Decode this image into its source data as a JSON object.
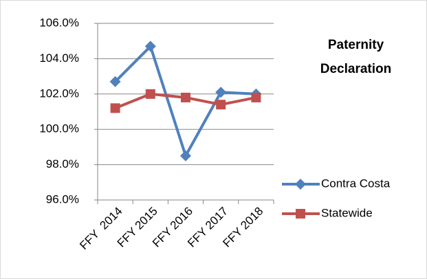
{
  "chart_data": {
    "type": "line",
    "title": "Paternity Declaration",
    "categories": [
      "FFY  2014",
      "FFY 2015",
      "FFY 2016",
      "FFY 2017",
      "FFY 2018"
    ],
    "series": [
      {
        "name": "Contra Costa",
        "color": "#4f81bd",
        "marker": "diamond",
        "values": [
          102.7,
          104.7,
          98.5,
          102.1,
          102.0
        ]
      },
      {
        "name": "Statewide",
        "color": "#c0504d",
        "marker": "square",
        "values": [
          101.2,
          102.0,
          101.8,
          101.4,
          101.8
        ]
      }
    ],
    "ylim": [
      96,
      106
    ],
    "yticks": [
      {
        "value": 96,
        "label": "96.0%"
      },
      {
        "value": 98,
        "label": "98.0%"
      },
      {
        "value": 100,
        "label": "100.0%"
      },
      {
        "value": 102,
        "label": "102.0%"
      },
      {
        "value": 104,
        "label": "104.0%"
      },
      {
        "value": 106,
        "label": "106.0%"
      }
    ],
    "grid": true,
    "legend": "right"
  }
}
